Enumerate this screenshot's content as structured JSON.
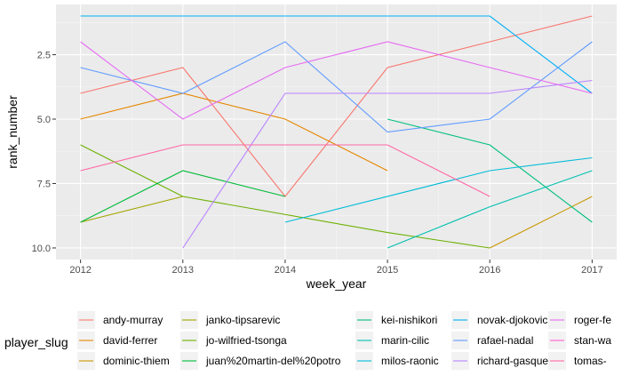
{
  "chart_data": {
    "type": "line",
    "title": "",
    "xlabel": "week_year",
    "ylabel": "rank_number",
    "x_ticks": [
      2012,
      2013,
      2014,
      2015,
      2016,
      2017
    ],
    "y_ticks": [
      2.5,
      5.0,
      7.5,
      10.0
    ],
    "y_tick_labels": [
      "2.5",
      "5.0",
      "7.5",
      "10.0"
    ],
    "xlim": [
      2011.76,
      2017.24
    ],
    "ylim": [
      0.55,
      10.45
    ],
    "y_reversed": true,
    "grid": true,
    "legend_position": "bottom",
    "legend_title": "player_slug",
    "series": [
      {
        "name": "andy-murray",
        "color": "#F8766D",
        "points": [
          [
            2012,
            4
          ],
          [
            2013,
            3
          ],
          [
            2014,
            8
          ],
          [
            2015,
            3
          ],
          [
            2016,
            2
          ],
          [
            2017,
            1
          ]
        ]
      },
      {
        "name": "david-ferrer",
        "color": "#E58700",
        "points": [
          [
            2012,
            5
          ],
          [
            2013,
            4
          ],
          [
            2014,
            5
          ],
          [
            2015,
            7
          ]
        ]
      },
      {
        "name": "dominic-thiem",
        "color": "#C99800",
        "points": [
          [
            2016,
            10
          ],
          [
            2017,
            8
          ]
        ]
      },
      {
        "name": "janko-tipsarevic",
        "color": "#A3A500",
        "points": [
          [
            2012,
            9
          ],
          [
            2013,
            8
          ]
        ]
      },
      {
        "name": "jo-wilfried-tsonga",
        "color": "#6BB100",
        "points": [
          [
            2012,
            6
          ],
          [
            2013,
            8
          ],
          [
            2015,
            9.4
          ],
          [
            2016,
            10
          ]
        ]
      },
      {
        "name": "juan%20martin-del%20potro",
        "color": "#00BA38",
        "points": [
          [
            2012,
            9
          ],
          [
            2013,
            7
          ],
          [
            2014,
            8
          ]
        ]
      },
      {
        "name": "kei-nishikori",
        "color": "#00BF7D",
        "points": [
          [
            2015,
            5
          ],
          [
            2016,
            6
          ],
          [
            2017,
            9
          ]
        ]
      },
      {
        "name": "marin-cilic",
        "color": "#00C0AF",
        "points": [
          [
            2015,
            10
          ],
          [
            2016,
            8.4
          ],
          [
            2017,
            7
          ]
        ]
      },
      {
        "name": "milos-raonic",
        "color": "#00BCD8",
        "points": [
          [
            2014,
            9
          ],
          [
            2016,
            7
          ],
          [
            2017,
            6.5
          ]
        ]
      },
      {
        "name": "novak-djokovic",
        "color": "#00B0F6",
        "points": [
          [
            2012,
            1
          ],
          [
            2016,
            1
          ],
          [
            2017,
            4
          ]
        ]
      },
      {
        "name": "rafael-nadal",
        "color": "#619CFF",
        "points": [
          [
            2012,
            3
          ],
          [
            2013,
            4
          ],
          [
            2014,
            2
          ],
          [
            2015,
            5.5
          ],
          [
            2016,
            5
          ],
          [
            2017,
            2
          ]
        ]
      },
      {
        "name": "richard-gasquet",
        "color": "#B983FF",
        "points": [
          [
            2013,
            10
          ],
          [
            2014,
            4
          ],
          [
            2015,
            4
          ],
          [
            2016,
            4
          ],
          [
            2017,
            3.5
          ]
        ]
      },
      {
        "name": "roger-federer",
        "color": "#E76BF3",
        "points": [
          [
            2012,
            2
          ],
          [
            2013,
            5
          ],
          [
            2014,
            3
          ],
          [
            2015,
            2
          ],
          [
            2016,
            3
          ],
          [
            2017,
            4
          ]
        ]
      },
      {
        "name": "stan-wawrinka",
        "color": "#FD61D1",
        "points": []
      },
      {
        "name": "tomas-berdych",
        "color": "#FF67A4",
        "points": [
          [
            2012,
            7
          ],
          [
            2013,
            6
          ],
          [
            2014,
            6
          ],
          [
            2015,
            6
          ],
          [
            2016,
            8
          ]
        ]
      }
    ],
    "legend_entries": [
      {
        "label": "andy-murray",
        "color": "#F8766D"
      },
      {
        "label": "david-ferrer",
        "color": "#E58700"
      },
      {
        "label": "dominic-thiem",
        "color": "#C99800"
      },
      {
        "label": "janko-tipsarevic",
        "color": "#A3A500"
      },
      {
        "label": "jo-wilfried-tsonga",
        "color": "#6BB100"
      },
      {
        "label": "juan%20martin-del%20potro",
        "color": "#00BA38"
      },
      {
        "label": "kei-nishikori",
        "color": "#00BF7D"
      },
      {
        "label": "marin-cilic",
        "color": "#00C0AF"
      },
      {
        "label": "milos-raonic",
        "color": "#00BCD8"
      },
      {
        "label": "novak-djokovic",
        "color": "#00B0F6"
      },
      {
        "label": "rafael-nadal",
        "color": "#619CFF"
      },
      {
        "label": "richard-gasquet",
        "color": "#B983FF"
      },
      {
        "label": "roger-fe",
        "color": "#E76BF3"
      },
      {
        "label": "stan-wa",
        "color": "#FD61D1"
      },
      {
        "label": "tomas-",
        "color": "#FF67A4"
      }
    ]
  }
}
